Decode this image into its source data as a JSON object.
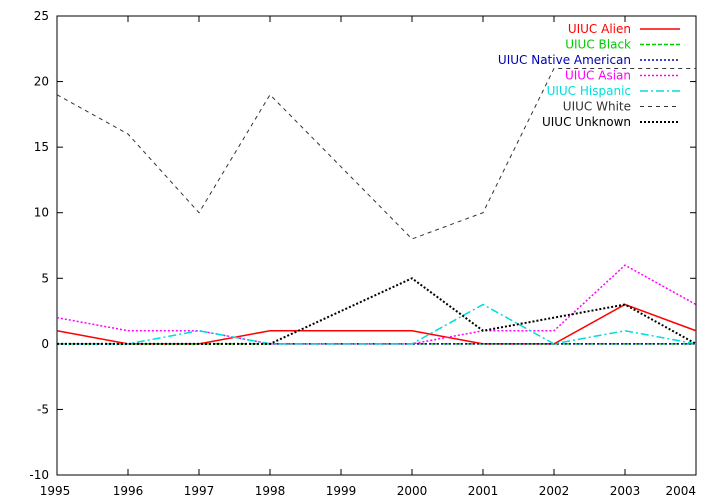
{
  "chart_data": {
    "type": "line",
    "title": "",
    "xlabel": "",
    "ylabel": "",
    "x": [
      1995,
      1996,
      1997,
      1998,
      1999,
      2000,
      2001,
      2002,
      2003,
      2004
    ],
    "xlim": [
      1995,
      2004
    ],
    "ylim": [
      -10,
      25
    ],
    "x_ticks": [
      "1995",
      "1996",
      "1997",
      "1998",
      "1999",
      "2000",
      "2001",
      "2002",
      "2003",
      "2004"
    ],
    "y_ticks": [
      "-10",
      "-5",
      "0",
      "5",
      "10",
      "15",
      "20",
      "25"
    ],
    "grid": false,
    "legend_position": "top-right",
    "series": [
      {
        "name": "UIUC Alien",
        "color": "#ff0000",
        "dash": "solid",
        "values": [
          1,
          0,
          0,
          1,
          1,
          1,
          0,
          0,
          3,
          1
        ]
      },
      {
        "name": "UIUC Black",
        "color": "#00cc00",
        "dash": "dashed",
        "values": [
          0,
          0,
          0,
          0,
          0,
          0,
          0,
          0,
          0,
          0
        ]
      },
      {
        "name": "UIUC Native American",
        "color": "#0000b0",
        "dash": "dotted",
        "values": [
          0,
          0,
          0,
          0,
          0,
          0,
          0,
          0,
          0,
          0
        ]
      },
      {
        "name": "UIUC Asian",
        "color": "#ff00ff",
        "dash": "dotted",
        "values": [
          2,
          1,
          1,
          0,
          0,
          0,
          1,
          1,
          6,
          3
        ]
      },
      {
        "name": "UIUC Hispanic",
        "color": "#00dddd",
        "dash": "dashdot",
        "values": [
          0,
          0,
          1,
          0,
          0,
          0,
          3,
          0,
          1,
          0
        ]
      },
      {
        "name": "UIUC White",
        "color": "#333333",
        "dash": "dashed-light",
        "values": [
          19,
          16,
          10,
          19,
          13.5,
          8,
          10,
          21,
          21,
          21
        ]
      },
      {
        "name": "UIUC Unknown",
        "color": "#000000",
        "dash": "dotted-bold",
        "values": [
          0,
          0,
          0,
          0,
          2.5,
          5,
          1,
          2,
          3,
          0
        ]
      }
    ]
  }
}
